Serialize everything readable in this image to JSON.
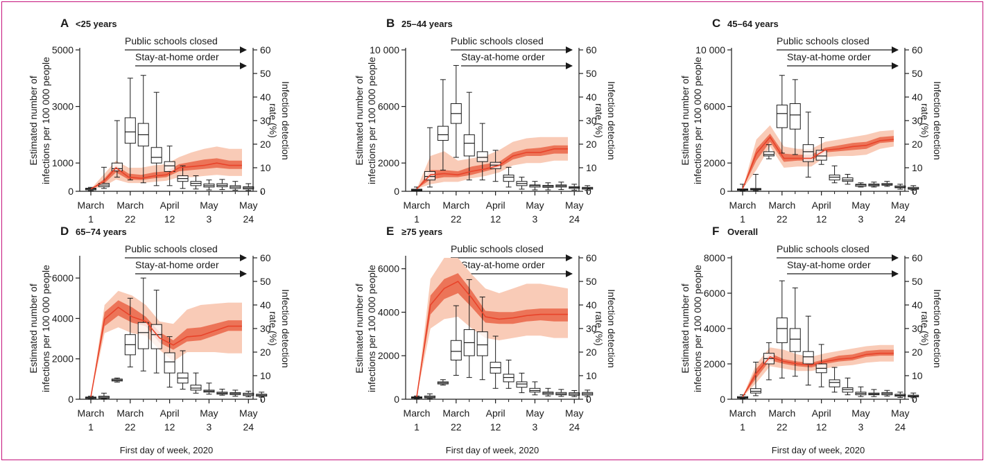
{
  "figure": {
    "xlabel": "First day of week, 2020",
    "left_ylabel": [
      "Estimated number of",
      "infections per 100 000 people"
    ],
    "right_ylabel": [
      "Infection detection",
      "rate (%)"
    ],
    "annotations": [
      "Public schools closed",
      "Stay-at-home order"
    ],
    "x_ticks": [
      {
        "line1": "March",
        "line2": "1"
      },
      {
        "line1": "March",
        "line2": "22"
      },
      {
        "line1": "April",
        "line2": "12"
      },
      {
        "line1": "May",
        "line2": "3"
      },
      {
        "line1": "May",
        "line2": "24"
      }
    ],
    "colors": {
      "border": "#c4107a",
      "line": "#e8432a",
      "band_inner": "#ec7458",
      "band_outer": "#f9cbb7"
    }
  },
  "chart_data": [
    {
      "type": "box+line",
      "letter": "A",
      "title": "<25 years",
      "ylim": [
        0,
        5000
      ],
      "yticks": [
        {
          "v": 0,
          "l": "0"
        },
        {
          "v": 1000,
          "l": "1000"
        },
        {
          "v": 3000,
          "l": "3000"
        },
        {
          "v": 5000,
          "l": "5000"
        }
      ],
      "y2lim": [
        0,
        60
      ],
      "y2ticks": [
        0,
        10,
        20,
        30,
        40,
        50,
        60
      ],
      "boxes": [
        [
          20,
          50,
          80,
          110,
          140
        ],
        [
          100,
          160,
          220,
          280,
          850
        ],
        [
          500,
          720,
          800,
          1000,
          2500
        ],
        [
          400,
          1700,
          2100,
          2600,
          4000
        ],
        [
          300,
          1600,
          2000,
          2400,
          4100
        ],
        [
          200,
          1000,
          1200,
          1550,
          3500
        ],
        [
          200,
          700,
          900,
          1050,
          1600
        ],
        [
          100,
          350,
          450,
          550,
          900
        ],
        [
          80,
          200,
          280,
          350,
          550
        ],
        [
          50,
          150,
          200,
          260,
          400
        ],
        [
          60,
          160,
          210,
          270,
          420
        ],
        [
          40,
          100,
          150,
          200,
          350
        ],
        [
          30,
          80,
          120,
          160,
          270
        ]
      ],
      "rate": {
        "median": [
          1,
          4,
          10,
          6,
          5.5,
          6.5,
          7,
          10,
          10.5,
          11,
          12,
          11,
          11
        ],
        "inner_lo": [
          1,
          3,
          8,
          5,
          4.8,
          5.5,
          6,
          8.5,
          9,
          9.5,
          10,
          9.5,
          9.5
        ],
        "inner_hi": [
          1,
          5,
          11,
          7.5,
          7,
          8,
          8.5,
          11.5,
          12.5,
          13.5,
          14,
          13,
          13
        ],
        "outer_lo": [
          1,
          2,
          5,
          3.5,
          3.5,
          4,
          4.5,
          6,
          6,
          6.5,
          7,
          6.5,
          6.5
        ],
        "outer_hi": [
          1,
          7,
          13,
          10,
          10,
          11,
          11.5,
          14.5,
          16.5,
          18,
          19,
          18,
          18
        ]
      }
    },
    {
      "type": "box+line",
      "letter": "B",
      "title": "25–44 years",
      "ylim": [
        0,
        10000
      ],
      "yticks": [
        {
          "v": 0,
          "l": "0"
        },
        {
          "v": 2000,
          "l": "2000"
        },
        {
          "v": 6000,
          "l": "6000"
        },
        {
          "v": 10000,
          "l": "10 000"
        }
      ],
      "y2lim": [
        0,
        60
      ],
      "y2ticks": [
        0,
        10,
        20,
        30,
        40,
        50,
        60
      ],
      "boxes": [
        [
          20,
          50,
          100,
          150,
          300
        ],
        [
          300,
          800,
          1050,
          1400,
          4500
        ],
        [
          1500,
          3600,
          4000,
          4600,
          7900
        ],
        [
          2400,
          4800,
          5500,
          6200,
          8900
        ],
        [
          800,
          2500,
          3400,
          4000,
          7000
        ],
        [
          800,
          2100,
          2400,
          2800,
          4800
        ],
        [
          700,
          1600,
          1850,
          2050,
          2900
        ],
        [
          300,
          700,
          1000,
          1150,
          1700
        ],
        [
          150,
          400,
          550,
          700,
          1000
        ],
        [
          100,
          300,
          400,
          450,
          700
        ],
        [
          100,
          280,
          350,
          420,
          600
        ],
        [
          120,
          300,
          380,
          450,
          650
        ],
        [
          80,
          200,
          270,
          330,
          500
        ],
        [
          60,
          150,
          220,
          280,
          400
        ]
      ],
      "rate": {
        "median": [
          1,
          7,
          7.5,
          7,
          8.5,
          9.5,
          11,
          15,
          16.5,
          16.5,
          18,
          18
        ],
        "inner_lo": [
          1,
          5,
          6,
          6,
          7,
          8.5,
          10,
          13.5,
          15,
          15,
          16,
          16
        ],
        "inner_hi": [
          1,
          9,
          9,
          8.5,
          10.5,
          11.5,
          12.5,
          16.5,
          18,
          18.5,
          19.5,
          19.5
        ],
        "outer_lo": [
          1,
          3,
          4,
          4,
          5.5,
          6.5,
          8,
          11,
          12,
          12,
          13,
          13
        ],
        "outer_hi": [
          1,
          15,
          17,
          13,
          14,
          15,
          17.5,
          21,
          22.5,
          23,
          23,
          23
        ]
      }
    },
    {
      "type": "box+line",
      "letter": "C",
      "title": "45–64 years",
      "ylim": [
        0,
        10000
      ],
      "yticks": [
        {
          "v": 0,
          "l": "0"
        },
        {
          "v": 2000,
          "l": "2000"
        },
        {
          "v": 6000,
          "l": "6000"
        },
        {
          "v": 10000,
          "l": "10 000"
        }
      ],
      "y2lim": [
        0,
        60
      ],
      "y2ticks": [
        0,
        10,
        20,
        30,
        40,
        50,
        60
      ],
      "boxes": [
        [
          30,
          80,
          120,
          170,
          500
        ],
        [
          40,
          100,
          150,
          200,
          1200
        ],
        [
          2300,
          2500,
          2600,
          2800,
          3300
        ],
        [
          2700,
          4500,
          5500,
          6100,
          8200
        ],
        [
          2600,
          4400,
          5400,
          6200,
          7900
        ],
        [
          1000,
          2100,
          2800,
          3300,
          5600
        ],
        [
          1900,
          2200,
          2500,
          2900,
          3800
        ],
        [
          600,
          800,
          1000,
          1150,
          1800
        ],
        [
          500,
          700,
          800,
          950,
          1200
        ],
        [
          300,
          350,
          450,
          500,
          600
        ],
        [
          300,
          380,
          450,
          520,
          650
        ],
        [
          350,
          430,
          480,
          550,
          700
        ],
        [
          150,
          250,
          300,
          380,
          500
        ],
        [
          80,
          150,
          200,
          280,
          400
        ]
      ],
      "rate": {
        "median": [
          1,
          16,
          23,
          14,
          14,
          14,
          17.5,
          18,
          19,
          19.5,
          21.5,
          22
        ],
        "inner_lo": [
          1,
          13,
          21,
          12.5,
          13,
          13,
          16.5,
          17,
          17.5,
          18,
          20.5,
          21
        ],
        "inner_hi": [
          1,
          18,
          24.5,
          16,
          15.5,
          15.5,
          18.5,
          19.5,
          20.5,
          21,
          23,
          23.5
        ],
        "outer_lo": [
          1,
          9,
          19,
          10,
          10.5,
          10.5,
          14.5,
          15,
          15,
          15.5,
          18,
          19
        ],
        "outer_hi": [
          1,
          22,
          28,
          19,
          18,
          18,
          21,
          22,
          23,
          24,
          25.5,
          26
        ]
      }
    },
    {
      "type": "box+line",
      "letter": "D",
      "title": "65–74 years",
      "ylim": [
        0,
        7000
      ],
      "yticks": [
        {
          "v": 0,
          "l": "0"
        },
        {
          "v": 2000,
          "l": "2000"
        },
        {
          "v": 4000,
          "l": "4000"
        },
        {
          "v": 6000,
          "l": "6000"
        }
      ],
      "y2lim": [
        0,
        60
      ],
      "y2ticks": [
        0,
        10,
        20,
        30,
        40,
        50,
        60
      ],
      "boxes": [
        [
          20,
          50,
          80,
          110,
          150
        ],
        [
          20,
          50,
          100,
          150,
          300
        ],
        [
          850,
          900,
          950,
          1000,
          1050
        ],
        [
          1600,
          2200,
          2700,
          3200,
          5000
        ],
        [
          1400,
          2500,
          3300,
          3800,
          6000
        ],
        [
          1300,
          2500,
          3200,
          3700,
          5400
        ],
        [
          600,
          1300,
          1850,
          2300,
          3100
        ],
        [
          500,
          800,
          1050,
          1300,
          2400
        ],
        [
          300,
          450,
          550,
          700,
          1300
        ],
        [
          250,
          350,
          400,
          450,
          800
        ],
        [
          200,
          250,
          300,
          350,
          500
        ],
        [
          150,
          230,
          280,
          330,
          450
        ],
        [
          120,
          180,
          240,
          300,
          400
        ],
        [
          100,
          150,
          200,
          250,
          350
        ]
      ],
      "rate": {
        "median": [
          1,
          34,
          39,
          35,
          33,
          26,
          23,
          26.5,
          27,
          29,
          31,
          31
        ],
        "inner_lo": [
          1,
          31,
          35.5,
          32.5,
          31,
          24,
          21,
          24.5,
          25,
          27,
          29,
          29
        ],
        "inner_hi": [
          1,
          37,
          42,
          39,
          35,
          28.5,
          25,
          30,
          30.5,
          32,
          33.5,
          33.5
        ],
        "outer_lo": [
          1,
          28,
          30.5,
          28,
          27,
          21,
          16,
          20,
          20,
          20,
          19.5,
          19.5
        ],
        "outer_hi": [
          1,
          40,
          46,
          44,
          40,
          33,
          32,
          38,
          40,
          40.5,
          41,
          41
        ]
      }
    },
    {
      "type": "box+line",
      "letter": "E",
      "title": "≥75 years",
      "ylim": [
        0,
        6500
      ],
      "yticks": [
        {
          "v": 0,
          "l": "0"
        },
        {
          "v": 2000,
          "l": "2000"
        },
        {
          "v": 4000,
          "l": "4000"
        },
        {
          "v": 6000,
          "l": "6000"
        }
      ],
      "y2lim": [
        0,
        60
      ],
      "y2ticks": [
        0,
        10,
        20,
        30,
        40,
        50,
        60
      ],
      "boxes": [
        [
          20,
          50,
          80,
          110,
          150
        ],
        [
          20,
          60,
          100,
          150,
          250
        ],
        [
          650,
          700,
          750,
          800,
          900
        ],
        [
          1100,
          1800,
          2200,
          2700,
          4300
        ],
        [
          1000,
          2000,
          2600,
          3200,
          5500
        ],
        [
          900,
          2000,
          2500,
          3100,
          4700
        ],
        [
          500,
          1200,
          1450,
          1700,
          2900
        ],
        [
          500,
          800,
          1000,
          1150,
          1800
        ],
        [
          300,
          550,
          700,
          800,
          1200
        ],
        [
          200,
          330,
          400,
          500,
          800
        ],
        [
          150,
          220,
          280,
          330,
          500
        ],
        [
          130,
          200,
          250,
          310,
          450
        ],
        [
          120,
          180,
          240,
          300,
          400
        ],
        [
          120,
          190,
          250,
          310,
          420
        ]
      ],
      "rate": {
        "median": [
          1,
          40,
          47,
          50,
          43,
          35,
          34,
          34.5,
          35.5,
          36,
          36,
          36
        ],
        "inner_lo": [
          1,
          36,
          42.5,
          45,
          39,
          32.5,
          32,
          32,
          33,
          33.5,
          33,
          33
        ],
        "inner_hi": [
          1,
          44,
          51,
          53.5,
          46,
          37.5,
          37,
          37,
          38,
          38.5,
          38.5,
          38.5
        ],
        "outer_lo": [
          1,
          30,
          34,
          35,
          30,
          26,
          25,
          26,
          27,
          27,
          26,
          26
        ],
        "outer_hi": [
          1,
          51,
          60,
          60,
          53,
          47,
          45,
          47,
          49,
          49,
          48,
          47
        ]
      }
    },
    {
      "type": "box+line",
      "letter": "F",
      "title": "Overall",
      "ylim": [
        0,
        8000
      ],
      "yticks": [
        {
          "v": 0,
          "l": "0"
        },
        {
          "v": 2000,
          "l": "2000"
        },
        {
          "v": 4000,
          "l": "4000"
        },
        {
          "v": 6000,
          "l": "6000"
        },
        {
          "v": 8000,
          "l": "8000"
        }
      ],
      "y2lim": [
        0,
        60
      ],
      "y2ticks": [
        0,
        10,
        20,
        30,
        40,
        50,
        60
      ],
      "boxes": [
        [
          20,
          60,
          100,
          150,
          250
        ],
        [
          200,
          350,
          450,
          600,
          2100
        ],
        [
          1100,
          2000,
          2300,
          2600,
          3200
        ],
        [
          1200,
          3200,
          4000,
          4600,
          6700
        ],
        [
          1300,
          2700,
          3400,
          4000,
          6300
        ],
        [
          800,
          2000,
          2400,
          2700,
          4700
        ],
        [
          700,
          1500,
          1750,
          2000,
          3100
        ],
        [
          400,
          700,
          950,
          1100,
          1800
        ],
        [
          250,
          400,
          550,
          650,
          1200
        ],
        [
          150,
          250,
          330,
          400,
          700
        ],
        [
          150,
          250,
          300,
          350,
          550
        ],
        [
          180,
          250,
          320,
          380,
          500
        ],
        [
          100,
          170,
          220,
          280,
          400
        ],
        [
          80,
          130,
          180,
          230,
          350
        ]
      ],
      "rate": {
        "median": [
          1,
          11,
          18,
          16,
          15,
          14.5,
          16,
          17,
          17.5,
          19,
          19.5,
          19.5
        ],
        "inner_lo": [
          1,
          9,
          16.5,
          15,
          14,
          13.5,
          15,
          16,
          16.5,
          18,
          18.5,
          18.5
        ],
        "inner_hi": [
          1,
          13,
          19.5,
          17,
          16,
          15.5,
          17,
          18.5,
          19,
          20.5,
          21,
          21
        ],
        "outer_lo": [
          1,
          7,
          14,
          13,
          12,
          12,
          13,
          14,
          14.5,
          15.5,
          16,
          16
        ],
        "outer_hi": [
          1,
          15,
          22,
          21,
          19,
          18,
          19.5,
          20.5,
          21.5,
          22.5,
          23,
          23
        ]
      }
    }
  ]
}
